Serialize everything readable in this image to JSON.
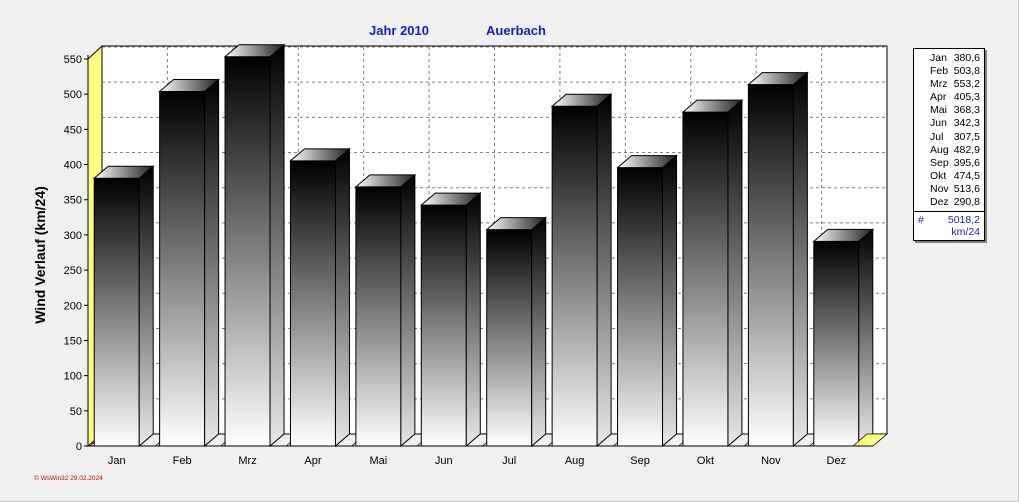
{
  "header": {
    "year": "Jahr  2010",
    "station": "Auerbach"
  },
  "footer": {
    "text": "© WsWin32  29.02.2024"
  },
  "legend": {
    "total_symbol": "#",
    "total_value": "5018,2",
    "total_unit": "km/24",
    "rows": [
      {
        "month": "Jan",
        "value": "380,6"
      },
      {
        "month": "Feb",
        "value": "503,8"
      },
      {
        "month": "Mrz",
        "value": "553,2"
      },
      {
        "month": "Apr",
        "value": "405,3"
      },
      {
        "month": "Mai",
        "value": "368,3"
      },
      {
        "month": "Jun",
        "value": "342,3"
      },
      {
        "month": "Jul",
        "value": "307,5"
      },
      {
        "month": "Aug",
        "value": "482,9"
      },
      {
        "month": "Sep",
        "value": "395,6"
      },
      {
        "month": "Okt",
        "value": "474,5"
      },
      {
        "month": "Nov",
        "value": "513,6"
      },
      {
        "month": "Dez",
        "value": "290,8"
      }
    ]
  },
  "chart_data": {
    "type": "bar",
    "title": "Jahr  2010   Auerbach",
    "xlabel": "",
    "ylabel": "Wind Verlauf  (km/24)",
    "categories": [
      "Jan",
      "Feb",
      "Mrz",
      "Apr",
      "Mai",
      "Jun",
      "Jul",
      "Aug",
      "Sep",
      "Okt",
      "Nov",
      "Dez"
    ],
    "values": [
      380.6,
      503.8,
      553.2,
      405.3,
      368.3,
      342.3,
      307.5,
      482.9,
      395.6,
      474.5,
      513.6,
      290.8
    ],
    "ylim": [
      0,
      550
    ],
    "yticks": [
      0,
      50,
      100,
      150,
      200,
      250,
      300,
      350,
      400,
      450,
      500,
      550
    ],
    "grid": true,
    "legend_position": "right",
    "colors": {
      "bar_top": "#000000",
      "bar_bottom": "#ffffff",
      "floor": "#ffff80",
      "title": "#1a1ac8",
      "background": "#f0f0f0"
    }
  }
}
